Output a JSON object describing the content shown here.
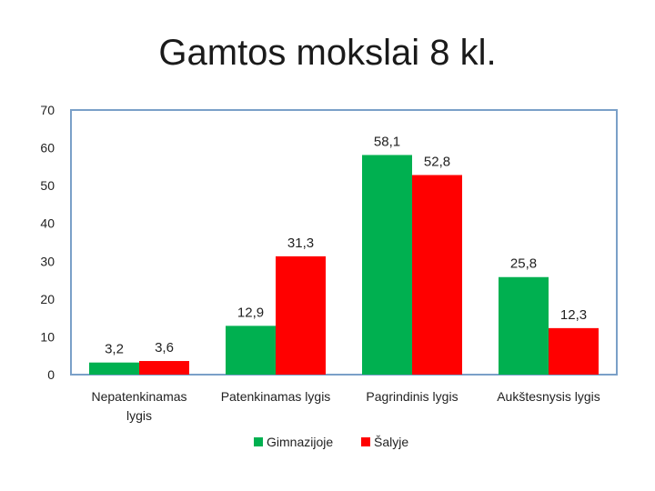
{
  "title": "Gamtos mokslai 8 kl.",
  "chart_data": {
    "type": "bar",
    "categories": [
      [
        "Nepatenkinamas",
        "lygis"
      ],
      [
        "Patenkinamas lygis"
      ],
      [
        "Pagrindinis lygis"
      ],
      [
        "Aukštesnysis lygis"
      ]
    ],
    "series": [
      {
        "name": "Gimnazijoje",
        "color": "#00b050",
        "values": [
          3.2,
          12.9,
          58.1,
          25.8
        ],
        "labels": [
          "3,2",
          "12,9",
          "58,1",
          "25,8"
        ]
      },
      {
        "name": "Šalyje",
        "color": "#ff0000",
        "values": [
          3.6,
          31.3,
          52.8,
          12.3
        ],
        "labels": [
          "3,6",
          "31,3",
          "52,8",
          "12,3"
        ]
      }
    ],
    "ylim": [
      0,
      70
    ],
    "yticks": [
      0,
      10,
      20,
      30,
      40,
      50,
      60,
      70
    ],
    "grid": false,
    "legend": "bottom",
    "plot_border_color": "#7aa0c8"
  }
}
